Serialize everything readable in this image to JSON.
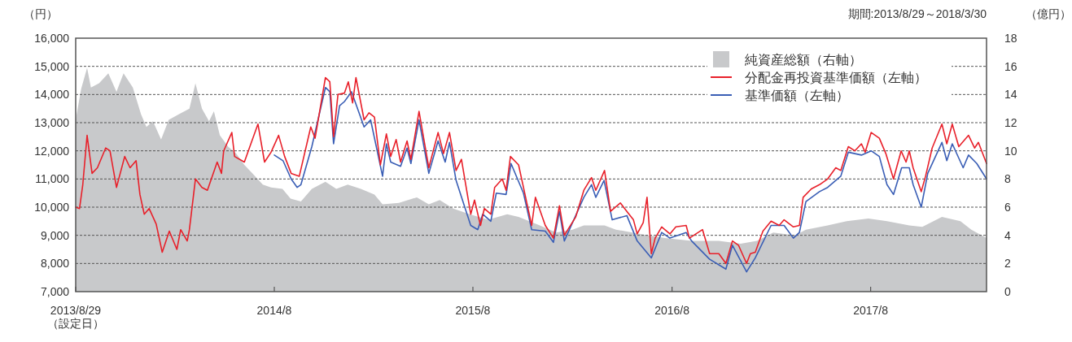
{
  "chart_data": {
    "type": "line",
    "annotations": [
      "期間:2013/8/29～2018/3/30"
    ],
    "ylabel": "（円）",
    "y2label": "（億円）",
    "xlim": [
      "2013-08-29",
      "2018-03-30"
    ],
    "xticks": [
      {
        "value": "2013-08-29",
        "label": "2013/8/29\n（設定日）"
      },
      {
        "value": "2014-08-29",
        "label": "2014/8"
      },
      {
        "value": "2015-08-29",
        "label": "2015/8"
      },
      {
        "value": "2016-08-29",
        "label": "2016/8"
      },
      {
        "value": "2017-08-29",
        "label": "2017/8"
      }
    ],
    "ylim": [
      7000,
      16000
    ],
    "yticks": [
      {
        "value": 7000,
        "label": "7,000"
      },
      {
        "value": 8000,
        "label": "8,000"
      },
      {
        "value": 9000,
        "label": "9,000"
      },
      {
        "value": 10000,
        "label": "10,000"
      },
      {
        "value": 11000,
        "label": "11,000"
      },
      {
        "value": 12000,
        "label": "12,000"
      },
      {
        "value": 13000,
        "label": "13,000"
      },
      {
        "value": 14000,
        "label": "14,000"
      },
      {
        "value": 15000,
        "label": "15,000"
      },
      {
        "value": 16000,
        "label": "16,000"
      }
    ],
    "y2lim": [
      0,
      18
    ],
    "y2ticks": [
      0,
      2,
      4,
      6,
      8,
      10,
      12,
      14,
      16,
      18
    ],
    "grid": "y",
    "legend": "top right",
    "line_style": "solid",
    "marker": "none",
    "series": [
      {
        "name": "純資産総額（右軸）",
        "type": "area",
        "axis": "y2",
        "color": "#c8c9cb",
        "x": [
          "2013-08-29",
          "2013-09-08",
          "2013-09-19",
          "2013-09-26",
          "2013-10-11",
          "2013-10-28",
          "2013-11-12",
          "2013-11-25",
          "2013-12-12",
          "2013-12-27",
          "2014-01-06",
          "2014-01-18",
          "2014-02-02",
          "2014-02-16",
          "2014-03-07",
          "2014-03-26",
          "2014-04-06",
          "2014-04-18",
          "2014-05-01",
          "2014-05-10",
          "2014-05-21",
          "2014-06-05",
          "2014-06-20",
          "2014-07-05",
          "2014-07-20",
          "2014-08-08",
          "2014-08-23",
          "2014-09-13",
          "2014-09-28",
          "2014-10-17",
          "2014-11-06",
          "2014-12-01",
          "2014-12-21",
          "2015-01-11",
          "2015-02-04",
          "2015-03-01",
          "2015-03-16",
          "2015-04-15",
          "2015-05-18",
          "2015-06-09",
          "2015-06-29",
          "2015-07-24",
          "2015-08-23",
          "2015-09-26",
          "2015-10-31",
          "2015-11-21",
          "2015-12-30",
          "2016-01-29",
          "2016-02-28",
          "2016-03-20",
          "2016-04-27",
          "2016-05-18",
          "2016-06-17",
          "2016-07-17",
          "2016-08-16",
          "2016-10-04",
          "2016-11-23",
          "2017-01-02",
          "2017-02-01",
          "2017-03-03",
          "2017-04-12",
          "2017-05-02",
          "2017-06-11",
          "2017-07-16",
          "2017-08-25",
          "2017-09-28",
          "2017-11-08",
          "2017-12-02",
          "2018-01-07",
          "2018-02-10",
          "2018-03-02",
          "2018-03-30"
        ],
        "values": [
          12.2,
          14.4,
          15.9,
          14.5,
          14.8,
          15.5,
          14.2,
          15.5,
          14.5,
          12.6,
          11.7,
          12.1,
          10.8,
          12.2,
          12.6,
          13.0,
          14.8,
          13.0,
          12.1,
          12.8,
          11.1,
          10.3,
          9.8,
          9.0,
          8.4,
          7.6,
          7.4,
          7.3,
          6.6,
          6.4,
          7.3,
          7.8,
          7.3,
          7.6,
          7.3,
          6.9,
          6.2,
          6.3,
          6.7,
          6.2,
          6.5,
          5.9,
          5.5,
          5.1,
          5.5,
          5.3,
          4.7,
          4.2,
          4.4,
          4.7,
          4.7,
          4.4,
          4.2,
          4.0,
          3.8,
          3.6,
          3.6,
          3.4,
          3.6,
          4.2,
          4.0,
          4.4,
          4.7,
          5.0,
          5.2,
          5.0,
          4.7,
          4.6,
          5.3,
          5.0,
          4.4,
          3.8
        ]
      },
      {
        "name": "分配金再投資基準価額（左軸）",
        "type": "line",
        "color": "#e8202a",
        "x": [
          "2013-08-29",
          "2013-09-05",
          "2013-09-11",
          "2013-09-19",
          "2013-09-28",
          "2013-10-08",
          "2013-10-23",
          "2013-10-31",
          "2013-11-12",
          "2013-11-27",
          "2013-12-07",
          "2013-12-18",
          "2013-12-25",
          "2014-01-02",
          "2014-01-11",
          "2014-01-24",
          "2014-02-04",
          "2014-02-17",
          "2014-03-03",
          "2014-03-10",
          "2014-03-22",
          "2014-03-26",
          "2014-04-06",
          "2014-04-18",
          "2014-04-28",
          "2014-05-16",
          "2014-05-24",
          "2014-05-28",
          "2014-06-12",
          "2014-06-17",
          "2014-07-05",
          "2014-07-17",
          "2014-07-30",
          "2014-08-11",
          "2014-08-23",
          "2014-09-06",
          "2014-09-17",
          "2014-09-29",
          "2014-10-14",
          "2014-11-04",
          "2014-11-12",
          "2014-12-01",
          "2014-12-09",
          "2014-12-16",
          "2014-12-24",
          "2015-01-05",
          "2015-01-12",
          "2015-01-20",
          "2015-01-26",
          "2015-02-10",
          "2015-02-19",
          "2015-03-01",
          "2015-03-12",
          "2015-03-23",
          "2015-03-31",
          "2015-04-10",
          "2015-04-18",
          "2015-04-30",
          "2015-05-07",
          "2015-05-22",
          "2015-06-09",
          "2015-06-26",
          "2015-07-06",
          "2015-07-17",
          "2015-07-29",
          "2015-08-08",
          "2015-08-25",
          "2015-09-01",
          "2015-09-12",
          "2015-09-19",
          "2015-10-01",
          "2015-10-08",
          "2015-10-22",
          "2015-10-29",
          "2015-11-06",
          "2015-11-21",
          "2015-11-30",
          "2015-12-15",
          "2015-12-22",
          "2016-01-09",
          "2016-01-24",
          "2016-02-04",
          "2016-02-13",
          "2016-03-05",
          "2016-03-20",
          "2016-04-03",
          "2016-04-11",
          "2016-04-27",
          "2016-05-08",
          "2016-05-26",
          "2016-06-07",
          "2016-06-19",
          "2016-06-26",
          "2016-07-07",
          "2016-07-14",
          "2016-07-22",
          "2016-07-29",
          "2016-08-10",
          "2016-08-25",
          "2016-09-05",
          "2016-09-24",
          "2016-09-30",
          "2016-10-24",
          "2016-11-06",
          "2016-11-23",
          "2016-12-06",
          "2016-12-18",
          "2016-12-29",
          "2017-01-13",
          "2017-01-20",
          "2017-01-29",
          "2017-02-12",
          "2017-02-27",
          "2017-03-14",
          "2017-03-23",
          "2017-04-09",
          "2017-04-20",
          "2017-04-27",
          "2017-05-12",
          "2017-05-27",
          "2017-06-11",
          "2017-06-26",
          "2017-07-05",
          "2017-07-19",
          "2017-07-31",
          "2017-08-12",
          "2017-08-19",
          "2017-08-30",
          "2017-09-14",
          "2017-09-26",
          "2017-10-10",
          "2017-10-24",
          "2017-11-02",
          "2017-11-08",
          "2017-11-15",
          "2017-11-30",
          "2017-12-08",
          "2017-12-20",
          "2018-01-07",
          "2018-01-16",
          "2018-01-26",
          "2018-02-07",
          "2018-02-25",
          "2018-03-08",
          "2018-03-15",
          "2018-03-30"
        ],
        "values": [
          10000,
          9950,
          10800,
          12550,
          11200,
          11400,
          12100,
          12000,
          10700,
          11800,
          11400,
          11650,
          10450,
          9750,
          9950,
          9400,
          8400,
          9150,
          8500,
          9200,
          8800,
          9200,
          11000,
          10700,
          10600,
          11600,
          11200,
          12000,
          12650,
          11800,
          11600,
          12250,
          12950,
          11600,
          11950,
          12550,
          11800,
          11200,
          11100,
          12850,
          12450,
          14600,
          14450,
          12500,
          14000,
          14050,
          14450,
          13700,
          14600,
          13100,
          13350,
          13200,
          11500,
          12600,
          11800,
          12400,
          11600,
          12350,
          11700,
          13400,
          11400,
          12650,
          11900,
          12650,
          11300,
          11700,
          9750,
          10250,
          9350,
          9950,
          9750,
          10700,
          11000,
          10600,
          11800,
          11500,
          10700,
          9350,
          10350,
          9350,
          8900,
          10050,
          9000,
          9650,
          10600,
          11050,
          10600,
          11300,
          9850,
          10150,
          9850,
          9550,
          9050,
          9450,
          10350,
          8350,
          8900,
          9300,
          9050,
          9300,
          9350,
          8900,
          9200,
          8350,
          8350,
          8000,
          8800,
          8650,
          8000,
          8350,
          8400,
          9150,
          9500,
          9350,
          9550,
          9300,
          9350,
          10350,
          10650,
          10800,
          11000,
          11400,
          11300,
          12150,
          12000,
          12250,
          11950,
          12650,
          12450,
          11900,
          11000,
          12000,
          11600,
          12000,
          11400,
          10550,
          11100,
          12100,
          12950,
          12250,
          12950,
          12150,
          12550,
          12100,
          12300,
          11550
        ]
      },
      {
        "name": "基準価額（左軸）",
        "type": "line",
        "color": "#3a5eb5",
        "x": [
          "2014-08-29",
          "2014-09-14",
          "2014-09-29",
          "2014-10-10",
          "2014-10-17",
          "2014-11-06",
          "2014-12-01",
          "2014-12-09",
          "2014-12-16",
          "2014-12-27",
          "2015-01-05",
          "2015-01-18",
          "2015-02-10",
          "2015-02-22",
          "2015-03-16",
          "2015-03-23",
          "2015-03-31",
          "2015-04-18",
          "2015-04-30",
          "2015-05-07",
          "2015-05-22",
          "2015-06-09",
          "2015-06-26",
          "2015-07-09",
          "2015-07-17",
          "2015-07-29",
          "2015-08-25",
          "2015-09-07",
          "2015-09-16",
          "2015-10-01",
          "2015-10-11",
          "2015-10-29",
          "2015-11-07",
          "2015-11-30",
          "2015-12-15",
          "2016-01-09",
          "2016-01-24",
          "2016-02-04",
          "2016-02-13",
          "2016-03-20",
          "2016-04-03",
          "2016-04-11",
          "2016-04-26",
          "2016-05-11",
          "2016-06-07",
          "2016-06-26",
          "2016-07-22",
          "2016-08-10",
          "2016-08-25",
          "2016-09-24",
          "2016-10-04",
          "2016-11-06",
          "2016-12-06",
          "2016-12-18",
          "2017-01-13",
          "2017-01-29",
          "2017-02-27",
          "2017-03-23",
          "2017-04-09",
          "2017-04-20",
          "2017-05-02",
          "2017-05-27",
          "2017-06-11",
          "2017-07-05",
          "2017-07-19",
          "2017-08-12",
          "2017-08-30",
          "2017-09-14",
          "2017-09-28",
          "2017-10-10",
          "2017-10-25",
          "2017-11-08",
          "2017-11-15",
          "2017-11-30",
          "2017-12-12",
          "2018-01-07",
          "2018-01-16",
          "2018-01-26",
          "2018-02-15",
          "2018-02-25",
          "2018-03-12",
          "2018-03-30"
        ],
        "values": [
          11850,
          11650,
          11000,
          10700,
          10800,
          12150,
          14250,
          14100,
          12250,
          13600,
          13750,
          14100,
          12850,
          13100,
          11100,
          12250,
          11600,
          11450,
          12100,
          11550,
          13100,
          11200,
          12350,
          11600,
          12300,
          10950,
          9350,
          9200,
          9750,
          9500,
          10500,
          10450,
          11550,
          10500,
          9200,
          9150,
          8750,
          9850,
          8800,
          10350,
          10800,
          10350,
          10950,
          9550,
          9700,
          8800,
          8200,
          9100,
          8900,
          9100,
          8800,
          8150,
          7800,
          8650,
          7700,
          8200,
          9350,
          9350,
          8900,
          9100,
          10200,
          10550,
          10700,
          11100,
          11950,
          11850,
          12000,
          11800,
          10800,
          10450,
          11400,
          11400,
          10800,
          10000,
          11200,
          12300,
          11650,
          12250,
          11400,
          11850,
          11550,
          11000
        ]
      }
    ]
  }
}
